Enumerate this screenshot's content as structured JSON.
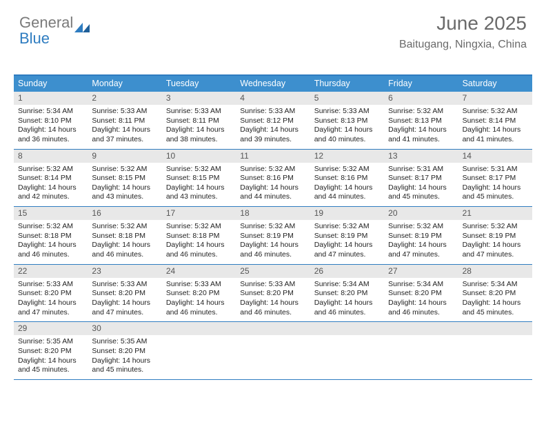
{
  "logo": {
    "word1": "General",
    "word2": "Blue",
    "tri_color": "#2e7cc0",
    "text_color": "#7a7a7a"
  },
  "header": {
    "title": "June 2025",
    "location": "Baitugang, Ningxia, China"
  },
  "colors": {
    "header_bar": "#3d8fce",
    "border": "#2e7cc0",
    "daynum_bg": "#e8e8e8",
    "daynum_text": "#555555",
    "body_text": "#222222",
    "page_bg": "#ffffff"
  },
  "calendar": {
    "day_labels": [
      "Sunday",
      "Monday",
      "Tuesday",
      "Wednesday",
      "Thursday",
      "Friday",
      "Saturday"
    ],
    "weeks": [
      [
        {
          "n": "1",
          "sr": "Sunrise: 5:34 AM",
          "ss": "Sunset: 8:10 PM",
          "d1": "Daylight: 14 hours",
          "d2": "and 36 minutes."
        },
        {
          "n": "2",
          "sr": "Sunrise: 5:33 AM",
          "ss": "Sunset: 8:11 PM",
          "d1": "Daylight: 14 hours",
          "d2": "and 37 minutes."
        },
        {
          "n": "3",
          "sr": "Sunrise: 5:33 AM",
          "ss": "Sunset: 8:11 PM",
          "d1": "Daylight: 14 hours",
          "d2": "and 38 minutes."
        },
        {
          "n": "4",
          "sr": "Sunrise: 5:33 AM",
          "ss": "Sunset: 8:12 PM",
          "d1": "Daylight: 14 hours",
          "d2": "and 39 minutes."
        },
        {
          "n": "5",
          "sr": "Sunrise: 5:33 AM",
          "ss": "Sunset: 8:13 PM",
          "d1": "Daylight: 14 hours",
          "d2": "and 40 minutes."
        },
        {
          "n": "6",
          "sr": "Sunrise: 5:32 AM",
          "ss": "Sunset: 8:13 PM",
          "d1": "Daylight: 14 hours",
          "d2": "and 41 minutes."
        },
        {
          "n": "7",
          "sr": "Sunrise: 5:32 AM",
          "ss": "Sunset: 8:14 PM",
          "d1": "Daylight: 14 hours",
          "d2": "and 41 minutes."
        }
      ],
      [
        {
          "n": "8",
          "sr": "Sunrise: 5:32 AM",
          "ss": "Sunset: 8:14 PM",
          "d1": "Daylight: 14 hours",
          "d2": "and 42 minutes."
        },
        {
          "n": "9",
          "sr": "Sunrise: 5:32 AM",
          "ss": "Sunset: 8:15 PM",
          "d1": "Daylight: 14 hours",
          "d2": "and 43 minutes."
        },
        {
          "n": "10",
          "sr": "Sunrise: 5:32 AM",
          "ss": "Sunset: 8:15 PM",
          "d1": "Daylight: 14 hours",
          "d2": "and 43 minutes."
        },
        {
          "n": "11",
          "sr": "Sunrise: 5:32 AM",
          "ss": "Sunset: 8:16 PM",
          "d1": "Daylight: 14 hours",
          "d2": "and 44 minutes."
        },
        {
          "n": "12",
          "sr": "Sunrise: 5:32 AM",
          "ss": "Sunset: 8:16 PM",
          "d1": "Daylight: 14 hours",
          "d2": "and 44 minutes."
        },
        {
          "n": "13",
          "sr": "Sunrise: 5:31 AM",
          "ss": "Sunset: 8:17 PM",
          "d1": "Daylight: 14 hours",
          "d2": "and 45 minutes."
        },
        {
          "n": "14",
          "sr": "Sunrise: 5:31 AM",
          "ss": "Sunset: 8:17 PM",
          "d1": "Daylight: 14 hours",
          "d2": "and 45 minutes."
        }
      ],
      [
        {
          "n": "15",
          "sr": "Sunrise: 5:32 AM",
          "ss": "Sunset: 8:18 PM",
          "d1": "Daylight: 14 hours",
          "d2": "and 46 minutes."
        },
        {
          "n": "16",
          "sr": "Sunrise: 5:32 AM",
          "ss": "Sunset: 8:18 PM",
          "d1": "Daylight: 14 hours",
          "d2": "and 46 minutes."
        },
        {
          "n": "17",
          "sr": "Sunrise: 5:32 AM",
          "ss": "Sunset: 8:18 PM",
          "d1": "Daylight: 14 hours",
          "d2": "and 46 minutes."
        },
        {
          "n": "18",
          "sr": "Sunrise: 5:32 AM",
          "ss": "Sunset: 8:19 PM",
          "d1": "Daylight: 14 hours",
          "d2": "and 46 minutes."
        },
        {
          "n": "19",
          "sr": "Sunrise: 5:32 AM",
          "ss": "Sunset: 8:19 PM",
          "d1": "Daylight: 14 hours",
          "d2": "and 47 minutes."
        },
        {
          "n": "20",
          "sr": "Sunrise: 5:32 AM",
          "ss": "Sunset: 8:19 PM",
          "d1": "Daylight: 14 hours",
          "d2": "and 47 minutes."
        },
        {
          "n": "21",
          "sr": "Sunrise: 5:32 AM",
          "ss": "Sunset: 8:19 PM",
          "d1": "Daylight: 14 hours",
          "d2": "and 47 minutes."
        }
      ],
      [
        {
          "n": "22",
          "sr": "Sunrise: 5:33 AM",
          "ss": "Sunset: 8:20 PM",
          "d1": "Daylight: 14 hours",
          "d2": "and 47 minutes."
        },
        {
          "n": "23",
          "sr": "Sunrise: 5:33 AM",
          "ss": "Sunset: 8:20 PM",
          "d1": "Daylight: 14 hours",
          "d2": "and 47 minutes."
        },
        {
          "n": "24",
          "sr": "Sunrise: 5:33 AM",
          "ss": "Sunset: 8:20 PM",
          "d1": "Daylight: 14 hours",
          "d2": "and 46 minutes."
        },
        {
          "n": "25",
          "sr": "Sunrise: 5:33 AM",
          "ss": "Sunset: 8:20 PM",
          "d1": "Daylight: 14 hours",
          "d2": "and 46 minutes."
        },
        {
          "n": "26",
          "sr": "Sunrise: 5:34 AM",
          "ss": "Sunset: 8:20 PM",
          "d1": "Daylight: 14 hours",
          "d2": "and 46 minutes."
        },
        {
          "n": "27",
          "sr": "Sunrise: 5:34 AM",
          "ss": "Sunset: 8:20 PM",
          "d1": "Daylight: 14 hours",
          "d2": "and 46 minutes."
        },
        {
          "n": "28",
          "sr": "Sunrise: 5:34 AM",
          "ss": "Sunset: 8:20 PM",
          "d1": "Daylight: 14 hours",
          "d2": "and 45 minutes."
        }
      ],
      [
        {
          "n": "29",
          "sr": "Sunrise: 5:35 AM",
          "ss": "Sunset: 8:20 PM",
          "d1": "Daylight: 14 hours",
          "d2": "and 45 minutes."
        },
        {
          "n": "30",
          "sr": "Sunrise: 5:35 AM",
          "ss": "Sunset: 8:20 PM",
          "d1": "Daylight: 14 hours",
          "d2": "and 45 minutes."
        },
        {
          "empty": true
        },
        {
          "empty": true
        },
        {
          "empty": true
        },
        {
          "empty": true
        },
        {
          "empty": true
        }
      ]
    ]
  }
}
